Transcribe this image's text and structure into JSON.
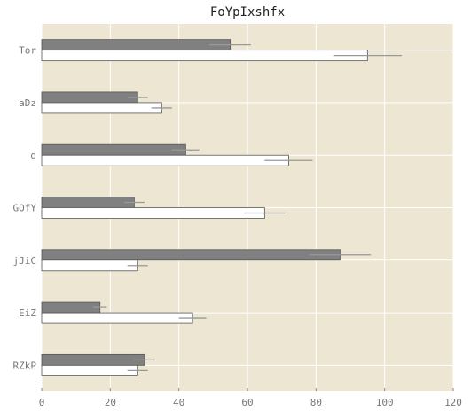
{
  "chart_data": {
    "type": "bar",
    "orientation": "horizontal",
    "title": "FoYpIxshfx",
    "xlabel": "",
    "ylabel": "",
    "xlim": [
      0,
      120
    ],
    "xticks": [
      "0",
      "20",
      "40",
      "60",
      "80",
      "100",
      "120"
    ],
    "categories": [
      "Tor",
      "aDz",
      "d",
      "GOfY",
      "jJiC",
      "EiZ",
      "RZkP"
    ],
    "grid": true,
    "legend": "none",
    "series": [
      {
        "color": "#808080",
        "values": [
          55,
          28,
          42,
          27,
          87,
          17,
          30
        ],
        "errors": [
          6,
          3,
          4,
          3,
          9,
          2,
          3
        ]
      },
      {
        "color": "#ffffff",
        "values": [
          95,
          35,
          72,
          65,
          28,
          44,
          28
        ],
        "errors": [
          10,
          3,
          7,
          6,
          3,
          4,
          3
        ]
      }
    ],
    "colors": {
      "plot_background": "#ece6d2",
      "grid": "#ffffff",
      "bar_edge": "#555555",
      "error_bar": "#999999"
    }
  }
}
